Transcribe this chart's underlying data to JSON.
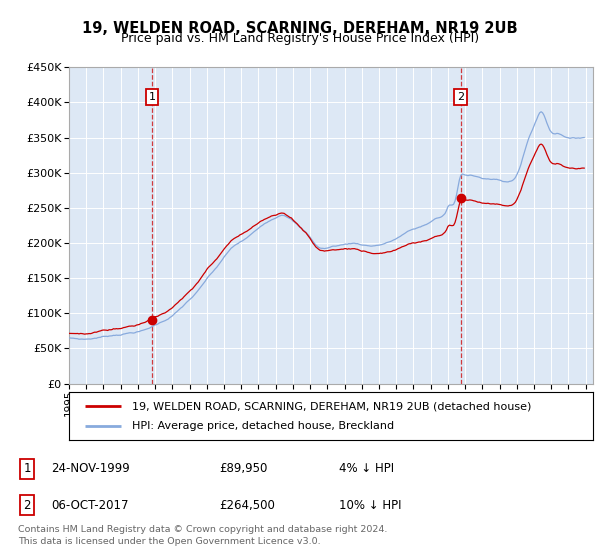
{
  "title": "19, WELDEN ROAD, SCARNING, DEREHAM, NR19 2UB",
  "subtitle": "Price paid vs. HM Land Registry's House Price Index (HPI)",
  "sale1_price": 89950,
  "sale2_price": 264500,
  "legend_property": "19, WELDEN ROAD, SCARNING, DEREHAM, NR19 2UB (detached house)",
  "legend_hpi": "HPI: Average price, detached house, Breckland",
  "footer": "Contains HM Land Registry data © Crown copyright and database right 2024.\nThis data is licensed under the Open Government Licence v3.0.",
  "hpi_color": "#88aadd",
  "property_color": "#cc0000",
  "bg_color": "#dde8f5",
  "ylim_max": 450000,
  "ytick_values": [
    0,
    50000,
    100000,
    150000,
    200000,
    250000,
    300000,
    350000,
    400000,
    450000
  ],
  "ytick_labels": [
    "£0",
    "£50K",
    "£100K",
    "£150K",
    "£200K",
    "£250K",
    "£300K",
    "£350K",
    "£400K",
    "£450K"
  ],
  "table_row1_num": "1",
  "table_row1_date": "24-NOV-1999",
  "table_row1_price": "£89,950",
  "table_row1_pct": "4% ↓ HPI",
  "table_row2_num": "2",
  "table_row2_date": "06-OCT-2017",
  "table_row2_price": "£264,500",
  "table_row2_pct": "10% ↓ HPI"
}
